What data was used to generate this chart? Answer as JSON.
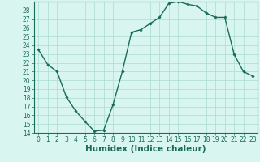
{
  "title": "",
  "xlabel": "Humidex (Indice chaleur)",
  "x_values": [
    0,
    1,
    2,
    3,
    4,
    5,
    6,
    7,
    8,
    9,
    10,
    11,
    12,
    13,
    14,
    15,
    16,
    17,
    18,
    19,
    20,
    21,
    22,
    23
  ],
  "y_values": [
    23.5,
    21.8,
    21.0,
    18.1,
    16.5,
    15.3,
    14.2,
    14.3,
    17.2,
    21.0,
    25.5,
    25.8,
    26.5,
    27.2,
    28.8,
    29.0,
    28.7,
    28.5,
    27.7,
    27.2,
    27.2,
    23.0,
    21.0,
    20.5
  ],
  "line_color": "#1a6b5a",
  "marker": "D",
  "marker_size": 1.8,
  "bg_color": "#d8f5ef",
  "grid_color": "#aaddcc",
  "ylim": [
    14,
    29
  ],
  "yticks": [
    14,
    15,
    16,
    17,
    18,
    19,
    20,
    21,
    22,
    23,
    24,
    25,
    26,
    27,
    28
  ],
  "xticks": [
    0,
    1,
    2,
    3,
    4,
    5,
    6,
    7,
    8,
    9,
    10,
    11,
    12,
    13,
    14,
    15,
    16,
    17,
    18,
    19,
    20,
    21,
    22,
    23
  ],
  "tick_label_fontsize": 5.5,
  "xlabel_fontsize": 7.5,
  "line_width": 1.0
}
